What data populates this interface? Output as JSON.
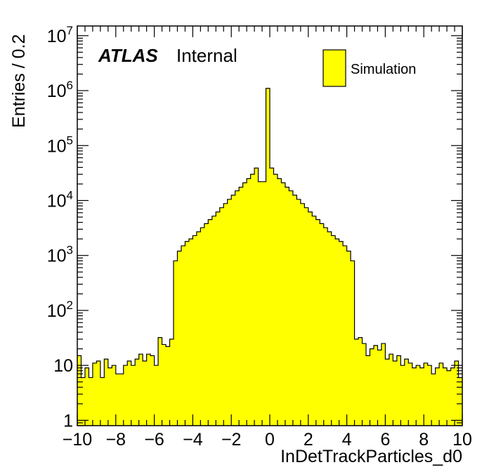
{
  "chart_data": {
    "type": "bar",
    "title": "",
    "xlabel": "InDetTrackParticles_d0",
    "ylabel": "Entries / 0.2",
    "xlim": [
      -10,
      10
    ],
    "ylim": [
      0.8,
      15000000
    ],
    "log_y": true,
    "grid": false,
    "legend_position": "top-right",
    "bin_width": 0.2,
    "x_ticks": [
      -10,
      -8,
      -6,
      -4,
      -2,
      0,
      2,
      4,
      6,
      8,
      10
    ],
    "x_tick_labels": [
      "−10",
      "−8",
      "−6",
      "−4",
      "−2",
      "0",
      "2",
      "4",
      "6",
      "8",
      "10"
    ],
    "y_ticks": [
      {
        "value": 1,
        "base": "1",
        "exp": ""
      },
      {
        "value": 10,
        "base": "10",
        "exp": ""
      },
      {
        "value": 100,
        "base": "10",
        "exp": "2"
      },
      {
        "value": 1000,
        "base": "10",
        "exp": "3"
      },
      {
        "value": 10000,
        "base": "10",
        "exp": "4"
      },
      {
        "value": 100000,
        "base": "10",
        "exp": "5"
      },
      {
        "value": 1000000,
        "base": "10",
        "exp": "6"
      },
      {
        "value": 10000000,
        "base": "10",
        "exp": "7"
      }
    ],
    "series": [
      {
        "name": "Simulation",
        "color": "#ffff00",
        "edge_color": "#000000",
        "x_low_edges": [
          -10.0,
          -9.8,
          -9.6,
          -9.4,
          -9.2,
          -9.0,
          -8.8,
          -8.6,
          -8.4,
          -8.2,
          -8.0,
          -7.8,
          -7.6,
          -7.4,
          -7.2,
          -7.0,
          -6.8,
          -6.6,
          -6.4,
          -6.2,
          -6.0,
          -5.8,
          -5.6,
          -5.4,
          -5.2,
          -5.0,
          -4.8,
          -4.6,
          -4.4,
          -4.2,
          -4.0,
          -3.8,
          -3.6,
          -3.4,
          -3.2,
          -3.0,
          -2.8,
          -2.6,
          -2.4,
          -2.2,
          -2.0,
          -1.8,
          -1.6,
          -1.4,
          -1.2,
          -1.0,
          -0.8,
          -0.6,
          -0.4,
          -0.2,
          0.0,
          0.2,
          0.4,
          0.6,
          0.8,
          1.0,
          1.2,
          1.4,
          1.6,
          1.8,
          2.0,
          2.2,
          2.4,
          2.6,
          2.8,
          3.0,
          3.2,
          3.4,
          3.6,
          3.8,
          4.0,
          4.2,
          4.4,
          4.6,
          4.8,
          5.0,
          5.2,
          5.4,
          5.6,
          5.8,
          6.0,
          6.2,
          6.4,
          6.6,
          6.8,
          7.0,
          7.2,
          7.4,
          7.6,
          7.8,
          8.0,
          8.2,
          8.4,
          8.6,
          8.8,
          9.0,
          9.2,
          9.4,
          9.6,
          9.8
        ],
        "values": [
          15,
          6,
          9,
          6,
          11,
          12,
          6,
          13,
          9,
          10,
          7,
          7,
          10,
          12,
          10,
          13,
          16,
          12,
          16,
          15,
          10,
          32,
          24,
          22,
          30,
          800,
          1200,
          1500,
          1800,
          2000,
          2300,
          2700,
          3200,
          3800,
          4500,
          5200,
          6200,
          7400,
          8800,
          10500,
          12500,
          15000,
          17500,
          21000,
          25000,
          30000,
          39000,
          22000,
          22000,
          1100000,
          39000,
          30000,
          25000,
          21000,
          17500,
          15000,
          12500,
          10500,
          8800,
          7400,
          6200,
          5200,
          4500,
          3800,
          3200,
          2700,
          2300,
          2000,
          1800,
          1500,
          1200,
          800,
          30,
          32,
          25,
          15,
          20,
          23,
          19,
          25,
          13,
          16,
          12,
          15,
          10,
          13,
          11,
          9,
          10,
          9,
          11,
          10,
          7,
          9,
          11,
          9,
          8,
          9,
          12,
          6
        ]
      }
    ]
  },
  "annotations": {
    "atlas_label": "ATLAS",
    "internal_label": "Internal"
  },
  "legend": {
    "entry_label": "Simulation"
  }
}
